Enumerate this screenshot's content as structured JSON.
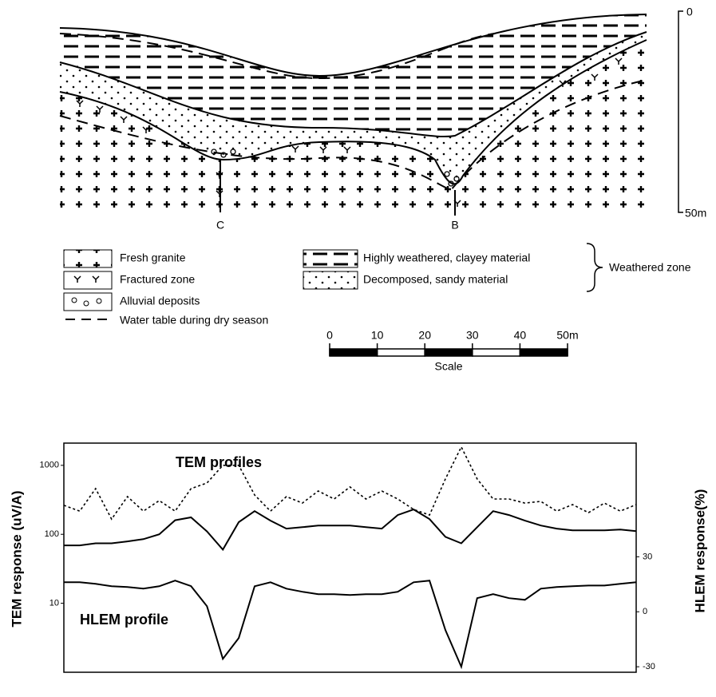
{
  "section": {
    "depth_top": "0",
    "depth_bottom": "50m",
    "point_c": "C",
    "point_b": "B"
  },
  "legend": {
    "left": [
      "Fresh granite",
      "Fractured zone",
      "Alluvial deposits",
      "Water table during dry season"
    ],
    "right": [
      "Highly weathered, clayey material",
      "Decomposed, sandy material"
    ],
    "group": "Weathered zone"
  },
  "scale": {
    "ticks": [
      0,
      10,
      20,
      30,
      40,
      {
        "value": 50,
        "label": "50m"
      }
    ],
    "label": "Scale"
  },
  "chart_data": {
    "type": "line",
    "annotations": [
      "TEM profiles",
      "HLEM profile"
    ],
    "y_label": "TEM response (uV/A)",
    "y2_label": "HLEM response(%)",
    "log_scale": true,
    "ylim": [
      1,
      2100
    ],
    "yticks": [
      10,
      100,
      1000
    ],
    "y2lim": [
      -33,
      92
    ],
    "y2ticks": [
      -30,
      0,
      30
    ],
    "categories": [
      null,
      null,
      null,
      null,
      null,
      null,
      null,
      null,
      null,
      null,
      null,
      null,
      null,
      null,
      null,
      null,
      null,
      null,
      null,
      null,
      null,
      null,
      null,
      null,
      null,
      null,
      null,
      null,
      null,
      null,
      null,
      null,
      null,
      null,
      null,
      null,
      null
    ],
    "series": [
      {
        "color": "#000000",
        "style": "dotted",
        "values": [
          263,
          217,
          460,
          166,
          352,
          217,
          308,
          217,
          460,
          555,
          1000,
          1000,
          371,
          217,
          352,
          284,
          424,
          325,
          486,
          325,
          424,
          325,
          229,
          190,
          635,
          1850,
          635,
          325,
          325,
          284,
          300,
          217,
          270,
          206,
          284,
          217,
          270
        ]
      },
      {
        "color": "#000000",
        "style": "solid",
        "values": [
          69,
          69,
          74,
          74,
          79,
          85,
          100,
          160,
          176,
          110,
          60,
          150,
          217,
          158,
          121,
          127,
          134,
          134,
          134,
          127,
          121,
          190,
          229,
          166,
          92,
          74,
          127,
          217,
          190,
          158,
          134,
          121,
          114,
          114,
          114,
          117,
          111
        ]
      },
      {
        "color": "#000000",
        "style": "solid",
        "axis": "y2",
        "values": [
          16.1,
          16.1,
          15.2,
          13.9,
          13.5,
          12.6,
          13.9,
          17.0,
          14.0,
          3.0,
          -25.7,
          -14.3,
          13.9,
          16.1,
          12.6,
          10.9,
          9.6,
          9.6,
          9.1,
          9.6,
          9.6,
          10.9,
          16.1,
          17.0,
          -10.0,
          -30.0,
          7.4,
          9.6,
          7.4,
          6.5,
          12.6,
          13.5,
          13.9,
          14.3,
          14.3,
          15.2,
          16.1
        ]
      }
    ]
  }
}
